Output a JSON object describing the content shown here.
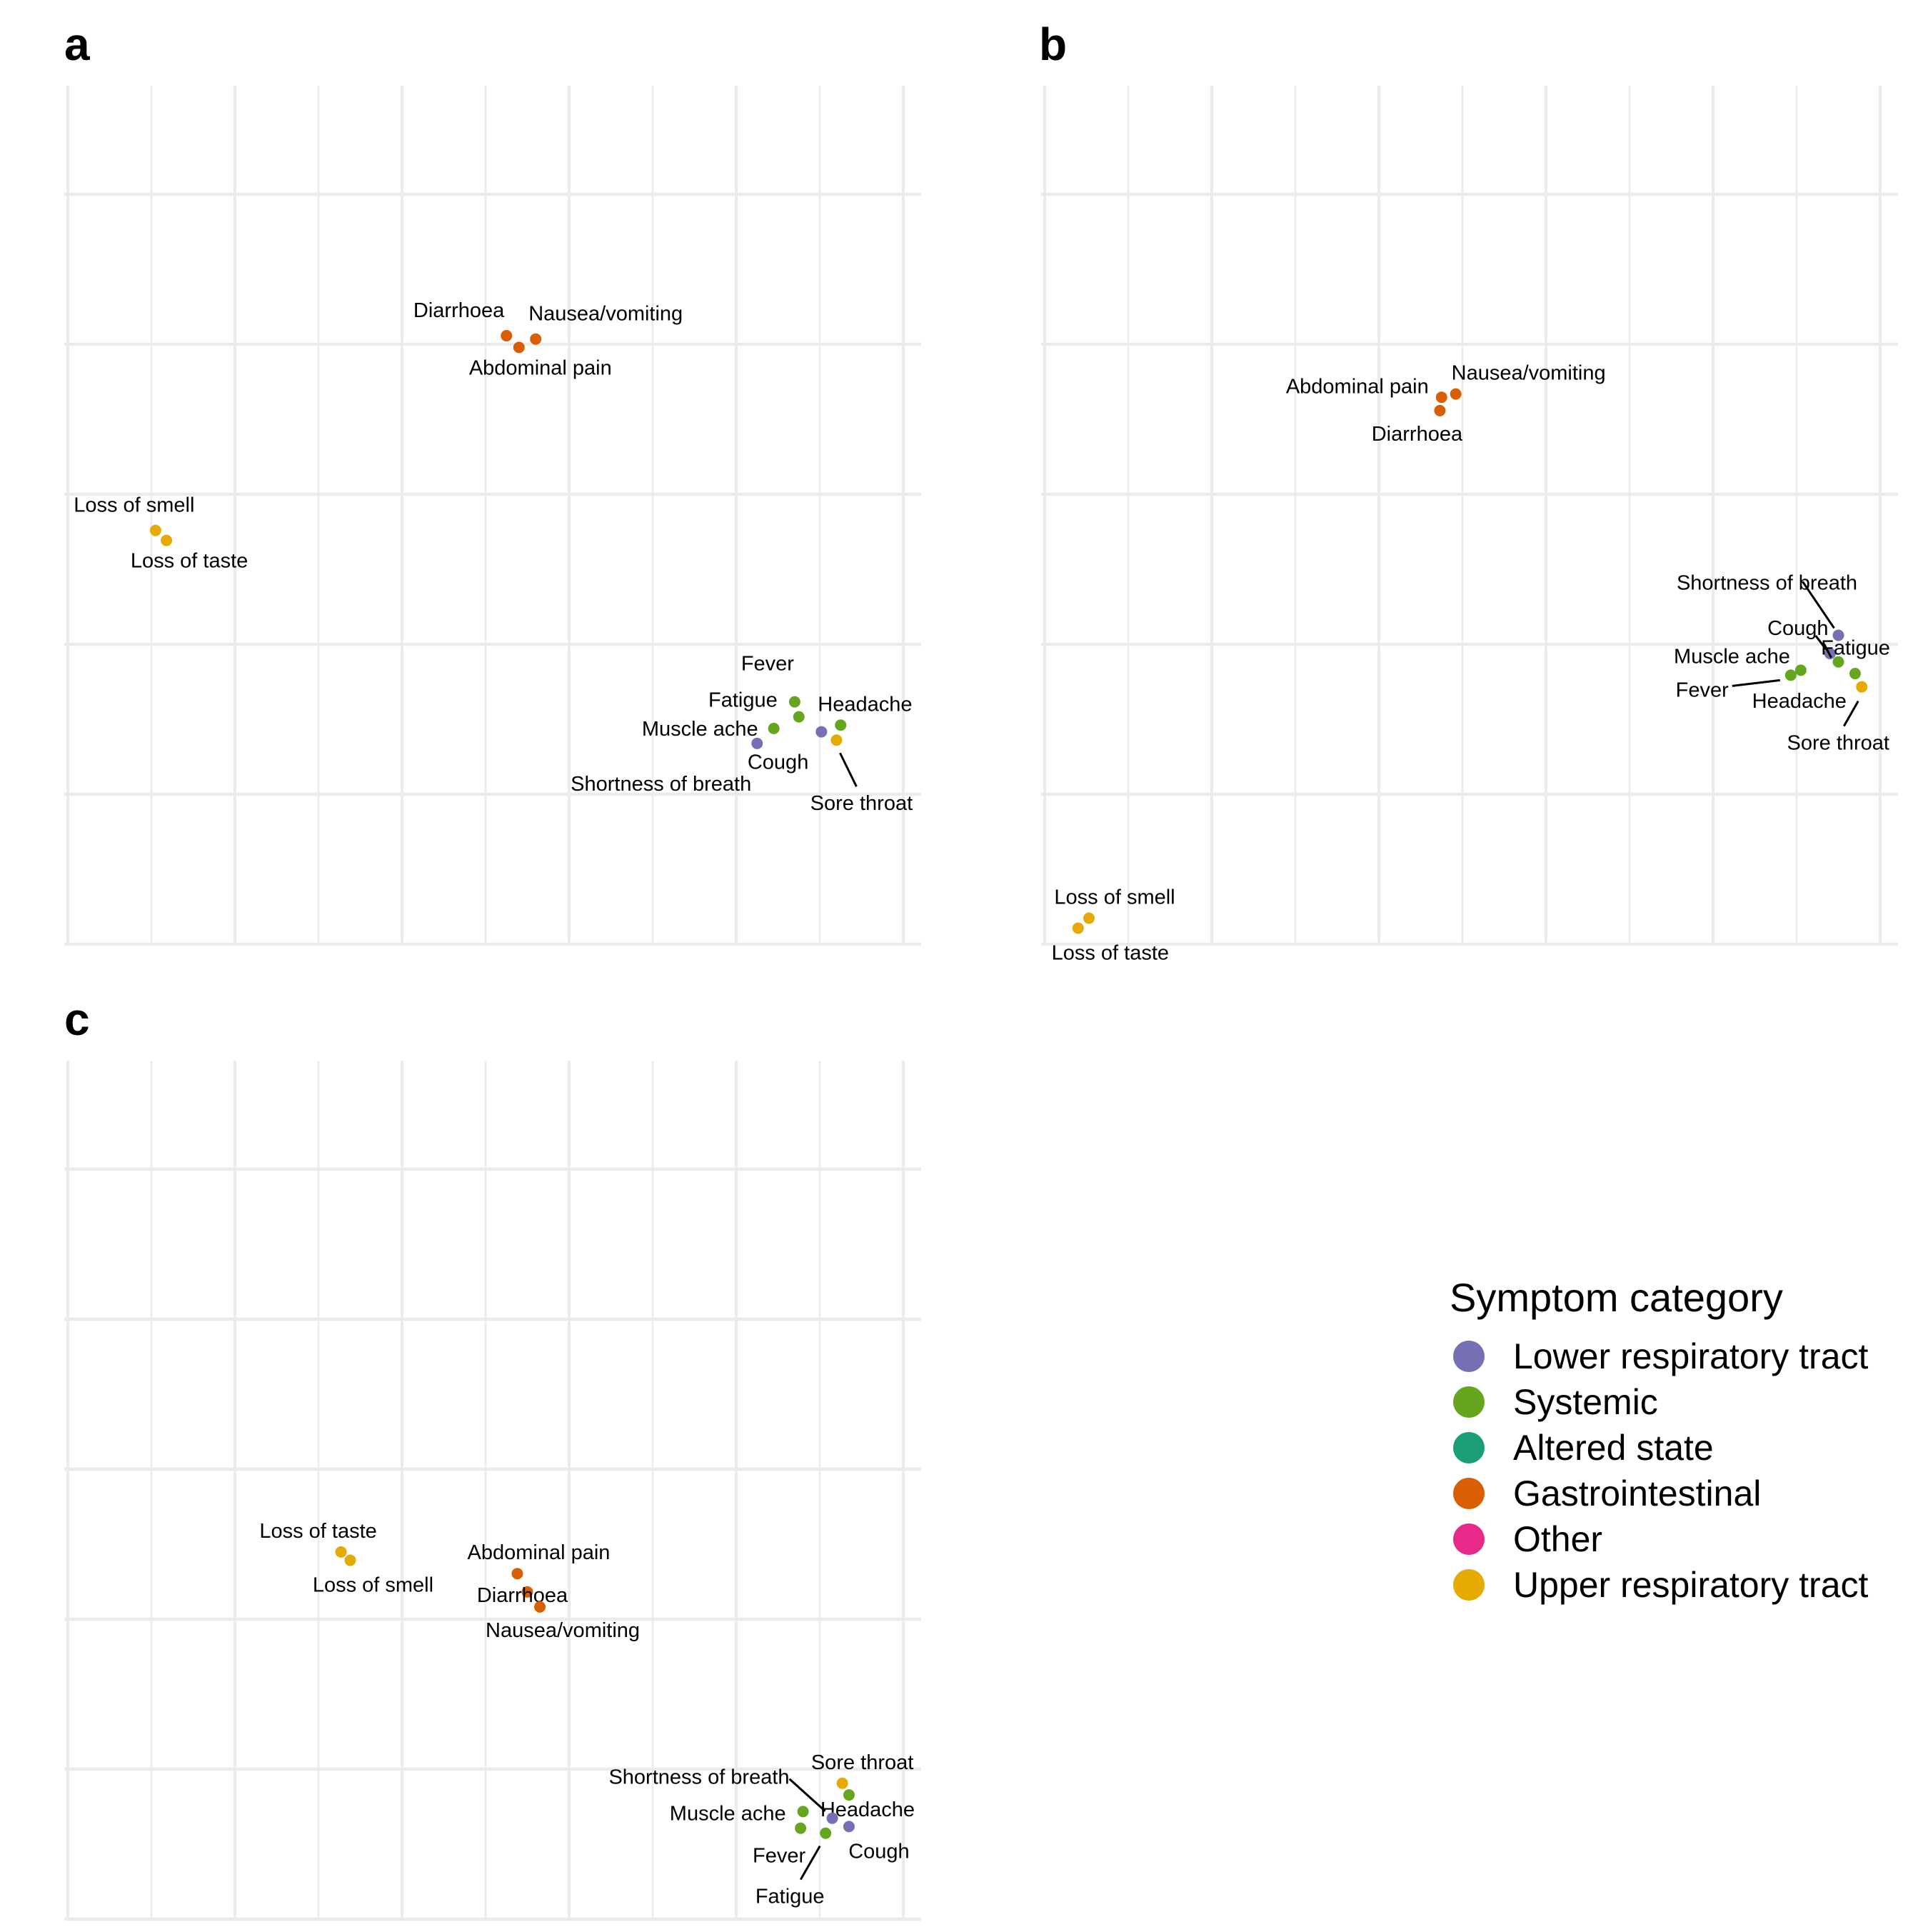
{
  "legend": {
    "title": "Symptom category",
    "items": [
      {
        "label": "Lower respiratory tract",
        "color": "#7570b3"
      },
      {
        "label": "Systemic",
        "color": "#66a61e"
      },
      {
        "label": "Altered state",
        "color": "#1b9e77"
      },
      {
        "label": "Gastrointestinal",
        "color": "#d95f02"
      },
      {
        "label": "Other",
        "color": "#e7298a"
      },
      {
        "label": "Upper respiratory tract",
        "color": "#e6ab02"
      }
    ]
  },
  "chart_data": [
    {
      "type": "scatter",
      "panel": "a",
      "xlim": [
        0,
        10
      ],
      "ylim": [
        -5,
        0
      ],
      "grid": true,
      "axis_ticks_shown": false,
      "points": [
        {
          "label": "Diarrhoea",
          "category": "Gastrointestinal",
          "x": 5.25,
          "y": -0.85
        },
        {
          "label": "Nausea/vomiting",
          "category": "Gastrointestinal",
          "x": 5.6,
          "y": -0.87
        },
        {
          "label": "Abdominal pain",
          "category": "Gastrointestinal",
          "x": 5.4,
          "y": -0.92
        },
        {
          "label": "Loss of smell",
          "category": "Upper respiratory tract",
          "x": 1.05,
          "y": -2.02
        },
        {
          "label": "Loss of taste",
          "category": "Upper respiratory tract",
          "x": 1.18,
          "y": -2.08
        },
        {
          "label": "Fever",
          "category": "Systemic",
          "x": 8.7,
          "y": -3.05
        },
        {
          "label": "Fatigue",
          "category": "Systemic",
          "x": 8.75,
          "y": -3.14
        },
        {
          "label": "Headache",
          "category": "Systemic",
          "x": 9.25,
          "y": -3.19
        },
        {
          "label": "Muscle ache",
          "category": "Systemic",
          "x": 8.45,
          "y": -3.21
        },
        {
          "label": "Cough",
          "category": "Lower respiratory tract",
          "x": 9.02,
          "y": -3.23
        },
        {
          "label": "Sore throat",
          "category": "Upper respiratory tract",
          "x": 9.2,
          "y": -3.28
        },
        {
          "label": "Shortness of breath",
          "category": "Lower respiratory tract",
          "x": 8.25,
          "y": -3.3
        }
      ]
    },
    {
      "type": "scatter",
      "panel": "b",
      "xlim": [
        0,
        10
      ],
      "ylim": [
        -5,
        0
      ],
      "grid": true,
      "axis_ticks_shown": false,
      "points": [
        {
          "label": "Abdominal pain",
          "category": "Gastrointestinal",
          "x": 4.75,
          "y": -1.22
        },
        {
          "label": "Nausea/vomiting",
          "category": "Gastrointestinal",
          "x": 4.92,
          "y": -1.2
        },
        {
          "label": "Diarrhoea",
          "category": "Gastrointestinal",
          "x": 4.73,
          "y": -1.3
        },
        {
          "label": "Shortness of breath",
          "category": "Lower respiratory tract",
          "x": 9.5,
          "y": -2.65
        },
        {
          "label": "Cough",
          "category": "Lower respiratory tract",
          "x": 9.4,
          "y": -2.76
        },
        {
          "label": "Fatigue",
          "category": "Systemic",
          "x": 9.5,
          "y": -2.81
        },
        {
          "label": "Muscle ache",
          "category": "Systemic",
          "x": 9.05,
          "y": -2.86
        },
        {
          "label": "Headache",
          "category": "Systemic",
          "x": 9.7,
          "y": -2.88
        },
        {
          "label": "Fever",
          "category": "Systemic",
          "x": 8.93,
          "y": -2.89
        },
        {
          "label": "Sore throat",
          "category": "Upper respiratory tract",
          "x": 9.78,
          "y": -2.96
        },
        {
          "label": "Loss of smell",
          "category": "Upper respiratory tract",
          "x": 0.53,
          "y": -4.35
        },
        {
          "label": "Loss of taste",
          "category": "Upper respiratory tract",
          "x": 0.4,
          "y": -4.41
        }
      ]
    },
    {
      "type": "scatter",
      "panel": "c",
      "xlim": [
        0,
        10
      ],
      "ylim": [
        -5,
        0
      ],
      "grid": true,
      "axis_ticks_shown": false,
      "points": [
        {
          "label": "Loss of taste",
          "category": "Upper respiratory tract",
          "x": 3.27,
          "y": -2.3
        },
        {
          "label": "Loss of smell",
          "category": "Upper respiratory tract",
          "x": 3.38,
          "y": -2.35
        },
        {
          "label": "Abdominal pain",
          "category": "Gastrointestinal",
          "x": 5.38,
          "y": -2.43
        },
        {
          "label": "Diarrhoea",
          "category": "Gastrointestinal",
          "x": 5.5,
          "y": -2.54
        },
        {
          "label": "Nausea/vomiting",
          "category": "Gastrointestinal",
          "x": 5.65,
          "y": -2.63
        },
        {
          "label": "Sore throat",
          "category": "Upper respiratory tract",
          "x": 9.27,
          "y": -3.69
        },
        {
          "label": "Headache",
          "category": "Systemic",
          "x": 9.35,
          "y": -3.76
        },
        {
          "label": "Shortness of breath",
          "category": "Lower respiratory tract",
          "x": 9.15,
          "y": -3.9
        },
        {
          "label": "Muscle ache",
          "category": "Systemic",
          "x": 8.8,
          "y": -3.86
        },
        {
          "label": "Cough",
          "category": "Lower respiratory tract",
          "x": 9.35,
          "y": -3.95
        },
        {
          "label": "Fever",
          "category": "Systemic",
          "x": 8.77,
          "y": -3.96
        },
        {
          "label": "Fatigue",
          "category": "Systemic",
          "x": 9.07,
          "y": -3.99
        }
      ]
    }
  ]
}
